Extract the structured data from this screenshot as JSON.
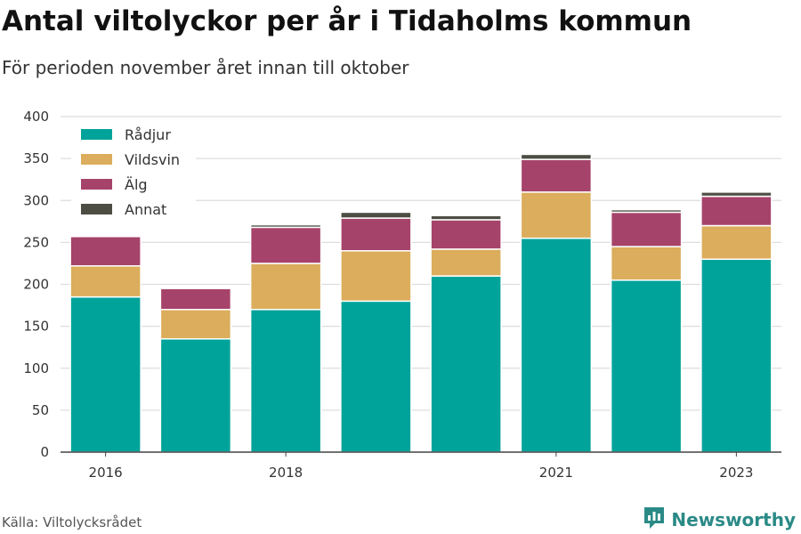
{
  "title": "Antal viltolyckor per år i Tidaholms kommun",
  "subtitle": "För perioden november året innan till oktober",
  "source": "Källa: Viltolycksrådet",
  "brand": {
    "name": "Newsworthy",
    "icon": "newsworthy-logo-icon",
    "color": "#2b8a86"
  },
  "chart_data": {
    "type": "bar",
    "stacked": true,
    "categories": [
      "2016",
      "2017",
      "2018",
      "2019",
      "2020",
      "2021",
      "2022",
      "2023"
    ],
    "x_tick_labels": [
      "2016",
      "",
      "2018",
      "",
      "",
      "2021",
      "",
      "2023"
    ],
    "series": [
      {
        "name": "Rådjur",
        "color": "#00a39a",
        "values": [
          185,
          135,
          170,
          180,
          210,
          255,
          205,
          230
        ]
      },
      {
        "name": "Vildsvin",
        "color": "#dbad5c",
        "values": [
          37,
          35,
          55,
          60,
          32,
          55,
          40,
          40
        ]
      },
      {
        "name": "Älg",
        "color": "#a6436a",
        "values": [
          35,
          25,
          43,
          39,
          35,
          39,
          41,
          35
        ]
      },
      {
        "name": "Annat",
        "color": "#4d4d44",
        "values": [
          0,
          0,
          3,
          7,
          5,
          6,
          3,
          5
        ]
      }
    ],
    "yticks": [
      0,
      50,
      100,
      150,
      200,
      250,
      300,
      350,
      400
    ],
    "ylim": [
      0,
      400
    ],
    "grid": true,
    "legend_position": "top-left",
    "title": "Antal viltolyckor per år i Tidaholms kommun",
    "xlabel": "",
    "ylabel": ""
  }
}
